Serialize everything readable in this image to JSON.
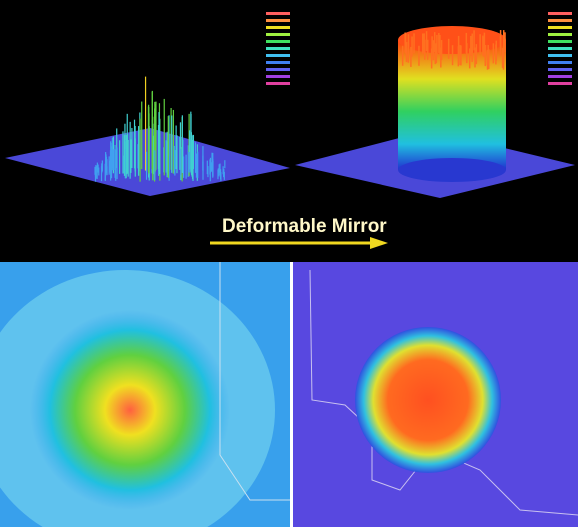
{
  "caption": "Deformable Mirror"
}
